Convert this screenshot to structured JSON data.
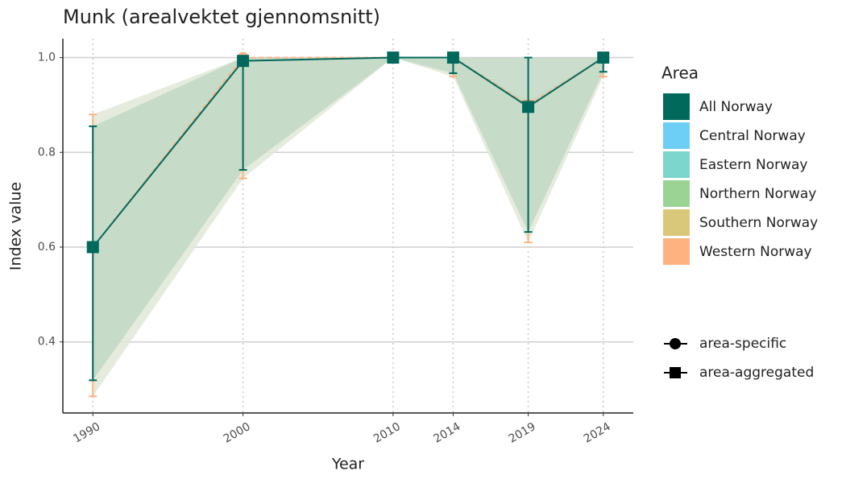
{
  "chart_data": {
    "type": "line",
    "title": "Munk (arealvektet gjennomsnitt)",
    "x_label": "Year",
    "y_label": "Index value",
    "x": [
      1990,
      2000,
      2010,
      2014,
      2019,
      2024
    ],
    "xlim": [
      1988,
      2026
    ],
    "xticks": [
      1990,
      2000,
      2010,
      2014,
      2019,
      2024
    ],
    "ylim": [
      0.25,
      1.04
    ],
    "yticks": [
      {
        "value": 0.4,
        "label": "0.4"
      },
      {
        "value": 0.6,
        "label": "0.6"
      },
      {
        "value": 0.8,
        "label": "0.8"
      },
      {
        "value": 1.0,
        "label": "1.0"
      }
    ],
    "grid": true,
    "legend_title": "Area",
    "series": [
      {
        "name": "All Norway",
        "color": "#00695c",
        "ribbon_color": "#c2d8c6",
        "marker": "square",
        "values": [
          0.6,
          0.993,
          1.0,
          1.0,
          0.896,
          1.0
        ],
        "lower": [
          0.319,
          0.763,
          1.0,
          0.967,
          0.632,
          0.97
        ],
        "upper": [
          0.855,
          1.0,
          1.0,
          1.0,
          1.0,
          1.0
        ]
      },
      {
        "name": "Central Norway",
        "color": "#6ecff6"
      },
      {
        "name": "Eastern Norway",
        "color": "#7dd6cd"
      },
      {
        "name": "Northern Norway",
        "color": "#9ad394"
      },
      {
        "name": "Southern Norway",
        "color": "#d9c87a"
      },
      {
        "name": "Western Norway",
        "color": "#fdb27f",
        "ribbon_color": "#e1e9d8",
        "marker": "circle",
        "values": [
          0.6,
          1.0,
          1.0,
          1.0,
          0.9,
          1.0
        ],
        "lower": [
          0.285,
          0.745,
          1.0,
          0.96,
          0.61,
          0.96
        ],
        "upper": [
          0.88,
          1.0,
          1.0,
          1.0,
          0.91,
          1.0
        ]
      }
    ],
    "shape_legend": [
      "area-specific",
      "area-aggregated"
    ]
  }
}
